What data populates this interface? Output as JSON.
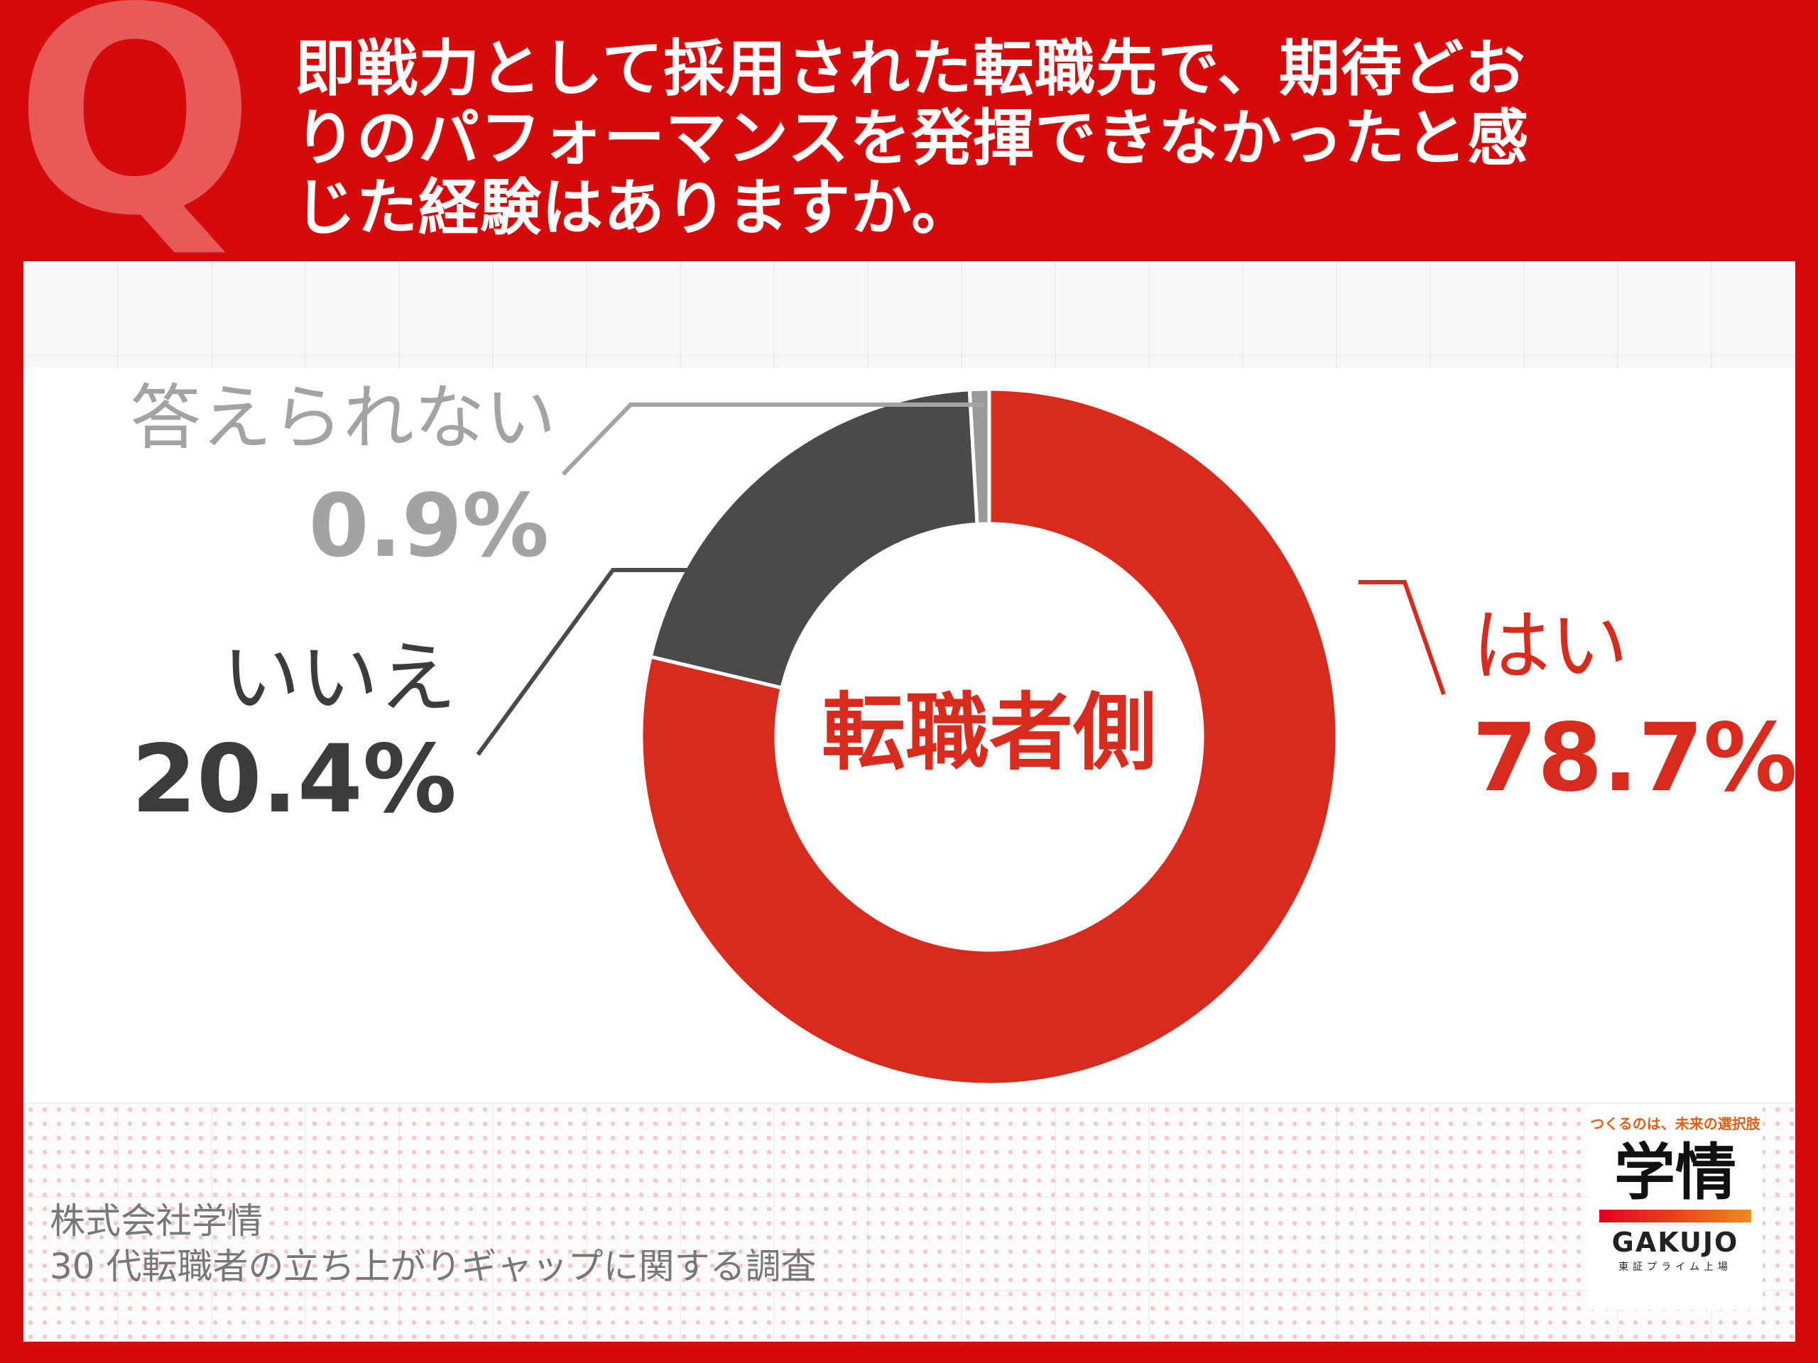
{
  "header": {
    "q_mark": "Q",
    "question_lines": [
      "即戦力として採用された転職先で、期待どお",
      "りのパフォーマンスを発揮できなかったと感",
      "じた経験はありますか。"
    ]
  },
  "chart_data": {
    "type": "pie",
    "center_label": "転職者側",
    "slices": [
      {
        "label": "はい",
        "value": 78.7,
        "value_text": "78.7%",
        "color": "#d92b1d"
      },
      {
        "label": "いいえ",
        "value": 20.4,
        "value_text": "20.4%",
        "color": "#4a4a4a"
      },
      {
        "label": "答えられない",
        "value": 0.9,
        "value_text": "0.9%",
        "color": "#999999"
      }
    ],
    "label_colors": {
      "はい": "#d92b1d",
      "いいえ": "#3c3c3c",
      "答えられない": "#a3a3a3"
    }
  },
  "footer": {
    "source_lines": [
      "株式会社学情",
      "30 代転職者の立ち上がりギャップに関する調査"
    ]
  },
  "logo": {
    "tagline": "つくるのは、未来の選択肢",
    "mark": "学情",
    "name": "GAKUJO",
    "sub": "東証プライム上場"
  }
}
